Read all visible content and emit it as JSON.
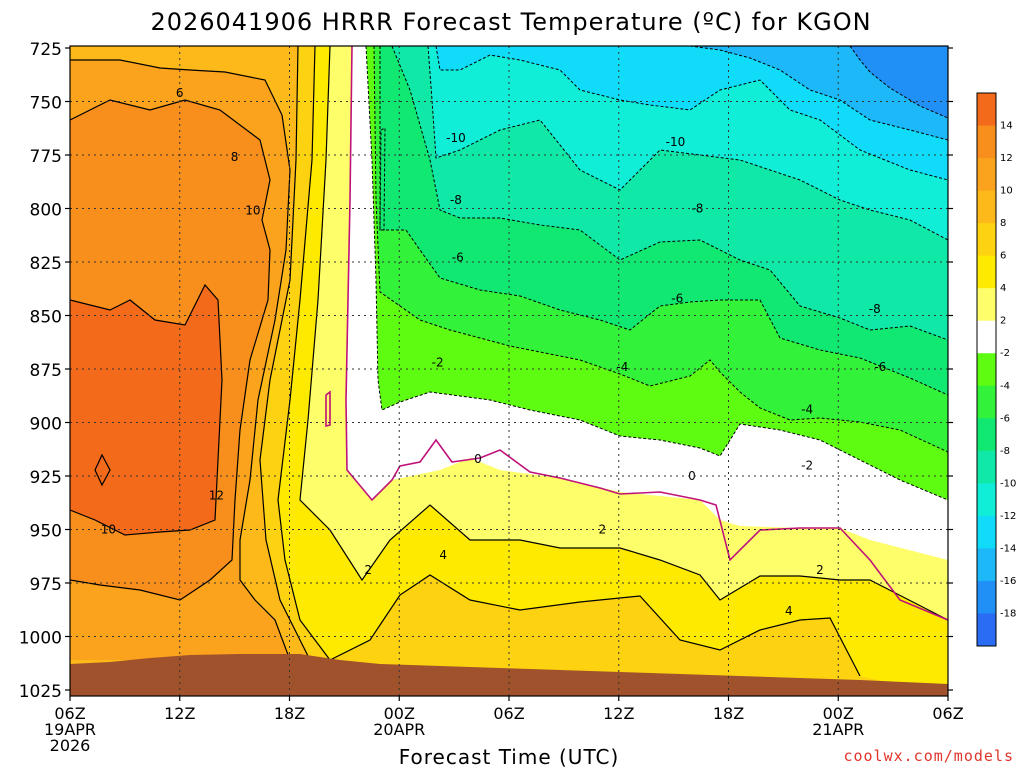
{
  "chart_data": {
    "type": "contour",
    "title": "2026041906 HRRR Forecast Temperature (ºC) for KGON",
    "xlabel": "Forecast Time (UTC)",
    "ylabel": "",
    "x_range_hours": [
      0,
      48
    ],
    "y_range_hpa": [
      725,
      1025
    ],
    "y_ticks": [
      "725",
      "750",
      "775",
      "800",
      "825",
      "850",
      "875",
      "900",
      "925",
      "950",
      "975",
      "1000",
      "1025"
    ],
    "x_ticks": [
      {
        "hour": 0,
        "line1": "06Z",
        "line2": "19APR",
        "line3": "2026"
      },
      {
        "hour": 6,
        "line1": "12Z",
        "line2": "",
        "line3": ""
      },
      {
        "hour": 12,
        "line1": "18Z",
        "line2": "",
        "line3": ""
      },
      {
        "hour": 18,
        "line1": "00Z",
        "line2": "20APR",
        "line3": ""
      },
      {
        "hour": 24,
        "line1": "06Z",
        "line2": "",
        "line3": ""
      },
      {
        "hour": 30,
        "line1": "12Z",
        "line2": "",
        "line3": ""
      },
      {
        "hour": 36,
        "line1": "18Z",
        "line2": "",
        "line3": ""
      },
      {
        "hour": 42,
        "line1": "00Z",
        "line2": "21APR",
        "line3": ""
      },
      {
        "hour": 48,
        "line1": "06Z",
        "line2": "",
        "line3": ""
      }
    ],
    "colorbar": {
      "levels": [
        "14",
        "12",
        "10",
        "8",
        "6",
        "4",
        "2",
        "-2",
        "-4",
        "-6",
        "-8",
        "-10",
        "-12",
        "-14",
        "-16",
        "-18"
      ],
      "colors": [
        "#f26a1a",
        "#f88e1c",
        "#fba31c",
        "#fdb81a",
        "#fdd210",
        "#fdea00",
        "#fefe6a",
        "#ffffff",
        "#5dfc10",
        "#33f23a",
        "#10e872",
        "#10e8a8",
        "#10eed8",
        "#10dcfa",
        "#1cb8f8",
        "#2090f6",
        "#2a6cf4"
      ]
    },
    "contour_labels": [
      {
        "text": "6",
        "hour": 6.0,
        "hpa": 746
      },
      {
        "text": "8",
        "hour": 9.0,
        "hpa": 776
      },
      {
        "text": "10",
        "hour": 10.0,
        "hpa": 801
      },
      {
        "text": "12",
        "hour": 8.0,
        "hpa": 934
      },
      {
        "text": "10",
        "hour": 2.1,
        "hpa": 950
      },
      {
        "text": "-10",
        "hour": 21.1,
        "hpa": 767
      },
      {
        "text": "-10",
        "hour": 33.1,
        "hpa": 769
      },
      {
        "text": "-8",
        "hour": 21.1,
        "hpa": 796
      },
      {
        "text": "-8",
        "hour": 34.3,
        "hpa": 800
      },
      {
        "text": "-6",
        "hour": 21.2,
        "hpa": 823
      },
      {
        "text": "-6",
        "hour": 33.2,
        "hpa": 842
      },
      {
        "text": "-8",
        "hour": 44.0,
        "hpa": 847
      },
      {
        "text": "-2",
        "hour": 20.1,
        "hpa": 872
      },
      {
        "text": "-4",
        "hour": 30.2,
        "hpa": 874
      },
      {
        "text": "-6",
        "hour": 44.3,
        "hpa": 874
      },
      {
        "text": "-4",
        "hour": 40.3,
        "hpa": 894
      },
      {
        "text": "0",
        "hour": 22.3,
        "hpa": 917
      },
      {
        "text": "0",
        "hour": 34.0,
        "hpa": 925
      },
      {
        "text": "-2",
        "hour": 40.3,
        "hpa": 920
      },
      {
        "text": "2",
        "hour": 16.3,
        "hpa": 969
      },
      {
        "text": "4",
        "hour": 20.4,
        "hpa": 962
      },
      {
        "text": "2",
        "hour": 29.1,
        "hpa": 950
      },
      {
        "text": "2",
        "hour": 41.0,
        "hpa": 969
      },
      {
        "text": "4",
        "hour": 39.3,
        "hpa": 988
      }
    ],
    "terrain_color": "#a0522d"
  },
  "credit": "coolwx.com/models"
}
